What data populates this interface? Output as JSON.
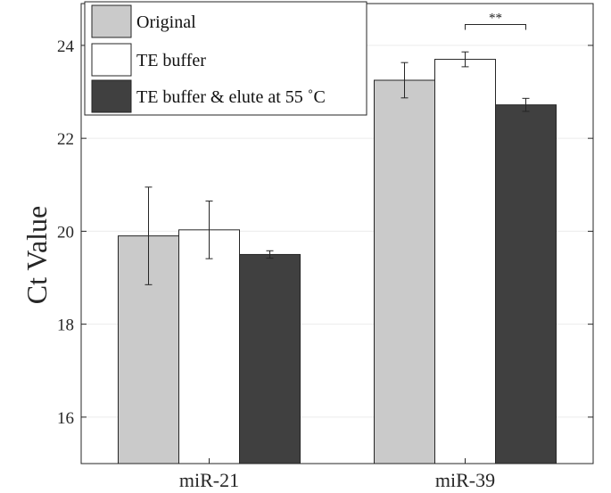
{
  "chart_data": {
    "type": "bar",
    "ylabel": "Ct Value",
    "xlabel": "",
    "ylim": [
      15,
      24.9
    ],
    "yticks": [
      16,
      18,
      20,
      22,
      24
    ],
    "categories": [
      "miR-21",
      "miR-39"
    ],
    "grid": "horizontal",
    "legend_position": "top-left",
    "series": [
      {
        "name": "Original",
        "color": "#cacaca",
        "values": [
          19.9,
          23.25
        ],
        "errors": [
          1.05,
          0.38
        ]
      },
      {
        "name": "TE buffer",
        "color": "#ffffff",
        "values": [
          20.03,
          23.7
        ],
        "errors": [
          0.62,
          0.16
        ]
      },
      {
        "name": "TE buffer & elute at 55 ˚C",
        "color": "#404040",
        "values": [
          19.5,
          22.72
        ],
        "errors": [
          0.08,
          0.14
        ]
      }
    ],
    "annotations": [
      {
        "text": "**",
        "category": 1,
        "from_series": 1,
        "to_series": 2,
        "y": 24.45
      }
    ]
  }
}
